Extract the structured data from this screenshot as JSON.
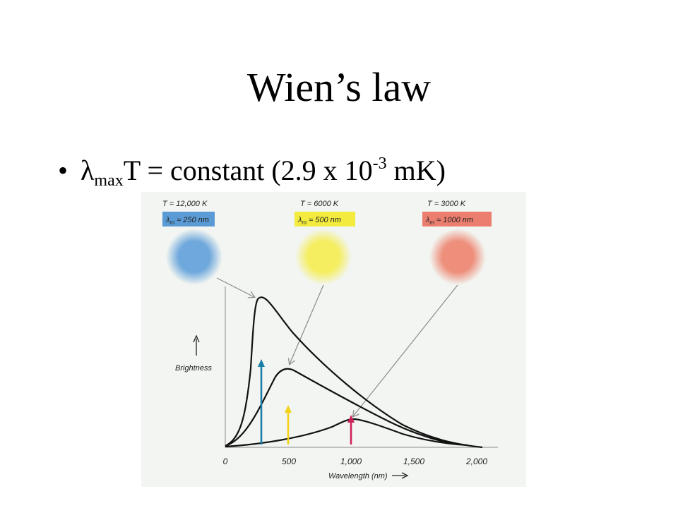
{
  "slide": {
    "title": "Wien’s law",
    "bullet": {
      "symbol": "λ",
      "symbol_sub": "max",
      "mid": "T = constant (2.9 x 10",
      "exp": "-3",
      "tail": " mK)"
    }
  },
  "figure": {
    "ylabel": "Brightness",
    "xlabel": "Wavelength (nm)",
    "xticks": [
      "0",
      "500",
      "1,000",
      "1,500",
      "2,000"
    ],
    "stars": [
      {
        "temp_label": "T = 12,000 K",
        "peak_label_prefix": "λ",
        "peak_label_sub": "m",
        "peak_label_value": " ≈ 250 nm",
        "color": "#6fa8dc",
        "box_color": "#5b9bd5",
        "arrow_color": "#1a7fa8",
        "peak_nm": 250
      },
      {
        "temp_label": "T = 6000 K",
        "peak_label_prefix": "λ",
        "peak_label_sub": "m",
        "peak_label_value": " ≈ 500 nm",
        "color": "#f5ee60",
        "box_color": "#f3ec3e",
        "arrow_color": "#f2d21a",
        "peak_nm": 500
      },
      {
        "temp_label": "T = 3000 K",
        "peak_label_prefix": "λ",
        "peak_label_sub": "m",
        "peak_label_value": " ≈ 1000 nm",
        "color": "#ee8f7c",
        "box_color": "#eb7e6e",
        "arrow_color": "#d0205a",
        "peak_nm": 1000
      }
    ]
  }
}
